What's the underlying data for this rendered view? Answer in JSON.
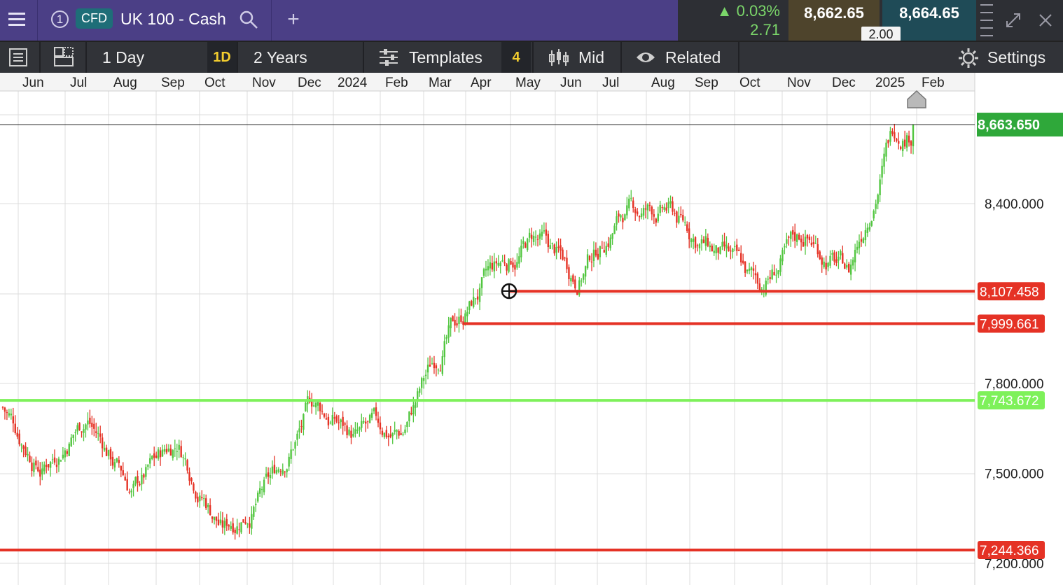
{
  "topbar": {
    "instrument_index": "1",
    "instrument_type": "CFD",
    "instrument_name": "UK 100 - Cash",
    "add_tab": "+",
    "change_percent": "0.03%",
    "change_abs": "2.71",
    "bid": "8,662.65",
    "ask": "8,664.65",
    "spread": "2.00",
    "colors": {
      "header_bg": "#4b3f86",
      "positive": "#7bd66a",
      "bid_bg": "#4e442c",
      "ask_bg": "#1f4b57"
    }
  },
  "toolbar": {
    "interval_label": "1 Day",
    "interval_code": "1D",
    "range_label": "2 Years",
    "templates_label": "Templates",
    "indicator_count": "4",
    "price_type_label": "Mid",
    "related_label": "Related",
    "settings_label": "Settings"
  },
  "chart_data": {
    "type": "candlestick",
    "title": "",
    "x_labels": [
      "Jun",
      "Jul",
      "Aug",
      "Sep",
      "Oct",
      "Nov",
      "Dec",
      "2024",
      "Feb",
      "Mar",
      "Apr",
      "May",
      "Jun",
      "Jul",
      "Aug",
      "Sep",
      "Oct",
      "Nov",
      "Dec",
      "2025",
      "Feb"
    ],
    "y_tick_labels": [
      "8,400.000",
      "7,800.000",
      "7,500.000",
      "7,200.000"
    ],
    "ylim": [
      7130,
      8830
    ],
    "current_price": "8,663.650",
    "current_price_value": 8663.65,
    "horizontal_lines": [
      {
        "label": "8,107.458",
        "value": 8107.458,
        "color": "#e53225"
      },
      {
        "label": "7,999.661",
        "value": 7999.661,
        "color": "#e53225"
      },
      {
        "label": "7,743.672",
        "value": 7743.672,
        "color": "#7ef15a"
      },
      {
        "label": "7,244.366",
        "value": 7244.366,
        "color": "#e53225"
      }
    ],
    "monthly_closes": [
      {
        "month": "Jun 2023",
        "close": 7530
      },
      {
        "month": "Jul 2023",
        "close": 7700
      },
      {
        "month": "Aug 2023",
        "close": 7440
      },
      {
        "month": "Sep 2023",
        "close": 7610
      },
      {
        "month": "Oct 2023",
        "close": 7320
      },
      {
        "month": "Nov 2023",
        "close": 7460
      },
      {
        "month": "Dec 2023",
        "close": 7730
      },
      {
        "month": "Jan 2024",
        "close": 7620
      },
      {
        "month": "Feb 2024",
        "close": 7630
      },
      {
        "month": "Mar 2024",
        "close": 7950
      },
      {
        "month": "Apr 2024",
        "close": 8140
      },
      {
        "month": "May 2024",
        "close": 8280
      },
      {
        "month": "Jun 2024",
        "close": 8160
      },
      {
        "month": "Jul 2024",
        "close": 8370
      },
      {
        "month": "Aug 2024",
        "close": 8370
      },
      {
        "month": "Sep 2024",
        "close": 8240
      },
      {
        "month": "Oct 2024",
        "close": 8110
      },
      {
        "month": "Nov 2024",
        "close": 8290
      },
      {
        "month": "Dec 2024",
        "close": 8170
      },
      {
        "month": "Jan 2025",
        "close": 8660
      }
    ],
    "colors": {
      "up": "#52c640",
      "down": "#e53225",
      "grid": "#dcdcdc",
      "price_tag": "#2fa83a"
    }
  }
}
